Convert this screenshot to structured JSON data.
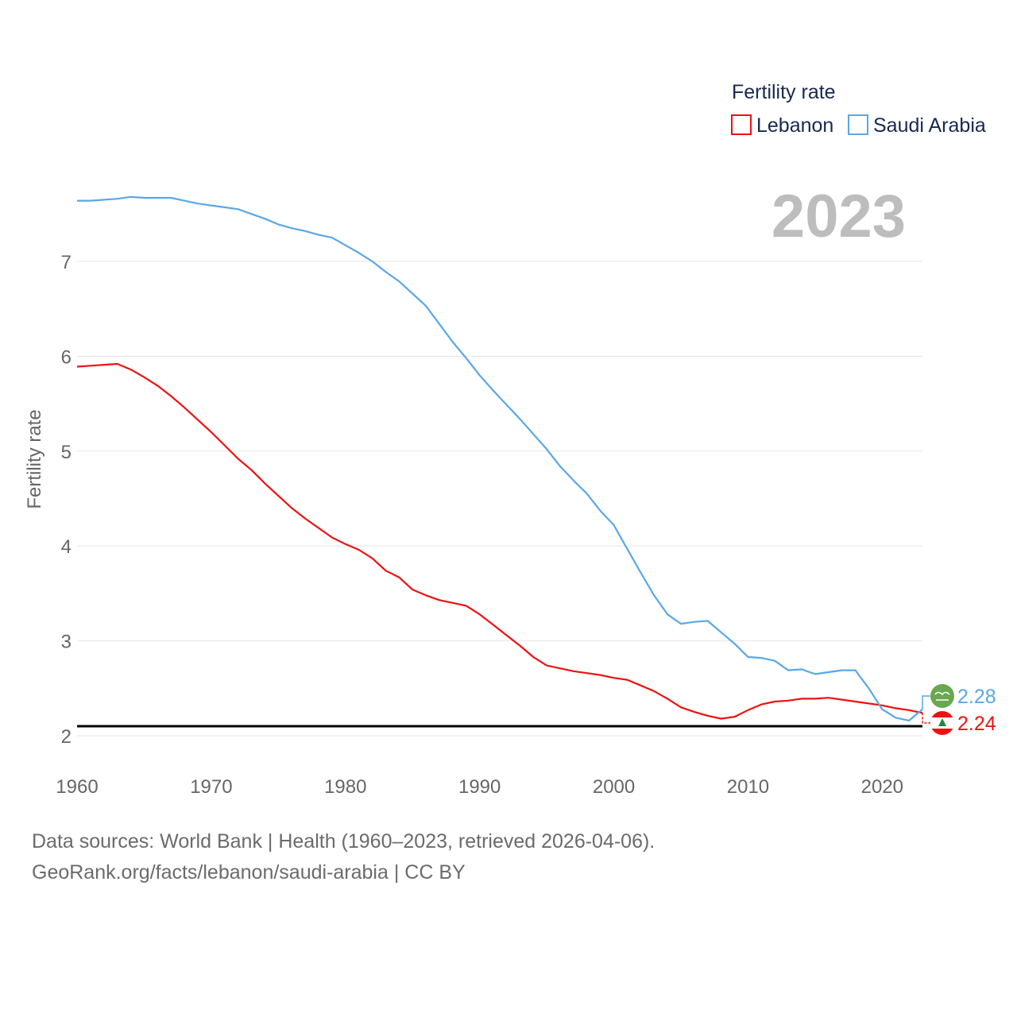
{
  "legend": {
    "title": "Fertility rate",
    "items": [
      "Lebanon",
      "Saudi Arabia"
    ]
  },
  "year_label": "2023",
  "sources": {
    "line1": "Data sources: World Bank | Health (1960–2023, retrieved 2026-04-06).",
    "line2": "GeoRank.org/facts/lebanon/saudi-arabia | CC BY"
  },
  "colors": {
    "lebanon": "#ee1111",
    "saudi": "#5aa7e8",
    "reference": "#000000",
    "grid": "#e6e6e6",
    "axis_text": "#666666",
    "legend_text": "#17294f",
    "year_label": "#bdbdbd",
    "saudi_flag": "#6aa84f"
  },
  "chart_data": {
    "type": "line",
    "title": "Fertility rate",
    "xlabel": "",
    "ylabel": "Fertility rate",
    "xlim": [
      1960,
      2023
    ],
    "ylim": [
      2,
      7.8
    ],
    "xticks": [
      1960,
      1970,
      1980,
      1990,
      2000,
      2010,
      2020
    ],
    "yticks": [
      2,
      3,
      4,
      5,
      6,
      7
    ],
    "grid": true,
    "reference_line": {
      "y": 2.1,
      "label": ""
    },
    "legend_position": "top-right",
    "x": [
      1960,
      1961,
      1962,
      1963,
      1964,
      1965,
      1966,
      1967,
      1968,
      1969,
      1970,
      1971,
      1972,
      1973,
      1974,
      1975,
      1976,
      1977,
      1978,
      1979,
      1980,
      1981,
      1982,
      1983,
      1984,
      1985,
      1986,
      1987,
      1988,
      1989,
      1990,
      1991,
      1992,
      1993,
      1994,
      1995,
      1996,
      1997,
      1998,
      1999,
      2000,
      2001,
      2002,
      2003,
      2004,
      2005,
      2006,
      2007,
      2008,
      2009,
      2010,
      2011,
      2012,
      2013,
      2014,
      2015,
      2016,
      2017,
      2018,
      2019,
      2020,
      2021,
      2022,
      2023
    ],
    "series": [
      {
        "name": "Lebanon",
        "values": [
          5.89,
          5.9,
          5.91,
          5.92,
          5.86,
          5.78,
          5.69,
          5.58,
          5.46,
          5.33,
          5.2,
          5.06,
          4.92,
          4.8,
          4.66,
          4.53,
          4.4,
          4.29,
          4.19,
          4.09,
          4.02,
          3.96,
          3.87,
          3.74,
          3.67,
          3.54,
          3.48,
          3.43,
          3.4,
          3.37,
          3.28,
          3.17,
          3.06,
          2.95,
          2.83,
          2.74,
          2.71,
          2.68,
          2.66,
          2.64,
          2.61,
          2.59,
          2.53,
          2.47,
          2.39,
          2.3,
          2.25,
          2.21,
          2.18,
          2.2,
          2.27,
          2.33,
          2.36,
          2.37,
          2.39,
          2.39,
          2.4,
          2.38,
          2.36,
          2.34,
          2.32,
          2.29,
          2.27,
          2.24
        ],
        "end_label": "2.24"
      },
      {
        "name": "Saudi Arabia",
        "values": [
          7.64,
          7.64,
          7.65,
          7.66,
          7.68,
          7.67,
          7.67,
          7.67,
          7.64,
          7.61,
          7.59,
          7.57,
          7.55,
          7.5,
          7.45,
          7.39,
          7.35,
          7.32,
          7.28,
          7.25,
          7.17,
          7.09,
          7.0,
          6.89,
          6.79,
          6.66,
          6.53,
          6.34,
          6.15,
          5.98,
          5.8,
          5.64,
          5.49,
          5.34,
          5.18,
          5.02,
          4.84,
          4.69,
          4.55,
          4.37,
          4.22,
          3.97,
          3.72,
          3.48,
          3.28,
          3.18,
          3.2,
          3.21,
          3.09,
          2.97,
          2.83,
          2.82,
          2.79,
          2.69,
          2.7,
          2.65,
          2.67,
          2.69,
          2.69,
          2.5,
          2.28,
          2.19,
          2.16,
          2.28
        ],
        "end_label": "2.28"
      }
    ]
  }
}
